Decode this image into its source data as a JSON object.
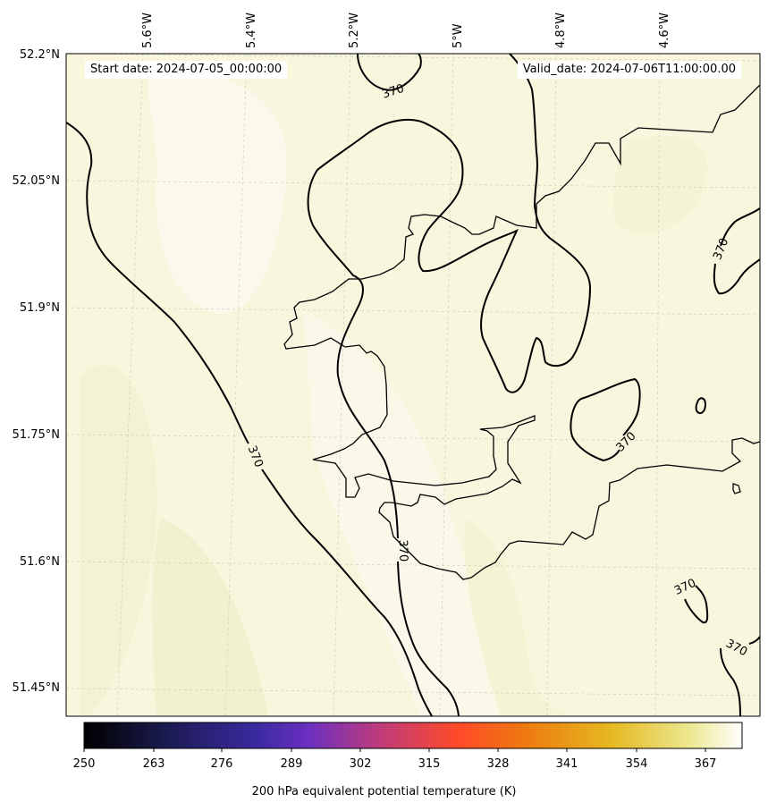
{
  "header": {
    "start_date": "Start date: 2024-07-05_00:00:00",
    "valid_date": "Valid_date: 2024-07-06T11:00:00.00"
  },
  "axes": {
    "lon_ticks": [
      "5.6°W",
      "5.4°W",
      "5.2°W",
      "5°W",
      "4.8°W",
      "4.6°W"
    ],
    "lat_ticks": [
      "52.2°N",
      "52.05°N",
      "51.9°N",
      "51.75°N",
      "51.6°N",
      "51.45°N"
    ],
    "gridlines": true
  },
  "contours": {
    "level": 370,
    "label": "370"
  },
  "colorbar": {
    "title": "200 hPa equivalent potential temperature (K)",
    "ticks": [
      "250",
      "263",
      "276",
      "289",
      "302",
      "315",
      "328",
      "341",
      "354",
      "367"
    ],
    "colormap": "CMRmap",
    "min": 250,
    "max": 373
  },
  "colors": {
    "field_base": "#f8f6dc",
    "field_light": "#fbf9ec",
    "field_dark": "#f3f2d2",
    "coastline": "#000000"
  }
}
